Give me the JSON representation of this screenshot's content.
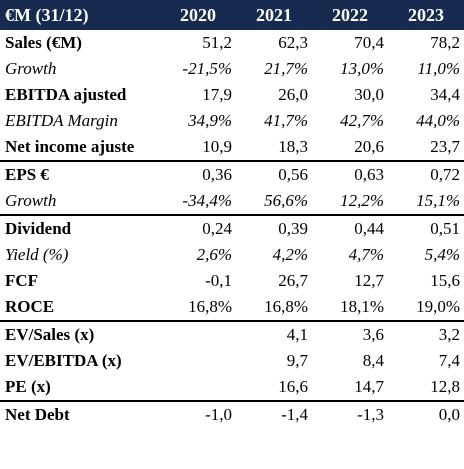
{
  "header": {
    "label": "€M (31/12)",
    "years": [
      "2020",
      "2021",
      "2022",
      "2023"
    ]
  },
  "rows": [
    {
      "label": "Sales (€M)",
      "values": [
        "51,2",
        "62,3",
        "70,4",
        "78,2"
      ],
      "style": "bold"
    },
    {
      "label": "Growth",
      "values": [
        "-21,5%",
        "21,7%",
        "13,0%",
        "11,0%"
      ],
      "style": "italic"
    },
    {
      "label": "EBITDA ajusted",
      "values": [
        "17,9",
        "26,0",
        "30,0",
        "34,4"
      ],
      "style": "bold"
    },
    {
      "label": "EBITDA Margin",
      "values": [
        "34,9%",
        "41,7%",
        "42,7%",
        "44,0%"
      ],
      "style": "italic"
    },
    {
      "label": "Net income ajuste",
      "values": [
        "10,9",
        "18,3",
        "20,6",
        "23,7"
      ],
      "style": "bold"
    },
    {
      "label": "EPS  €",
      "values": [
        "0,36",
        "0,56",
        "0,63",
        "0,72"
      ],
      "style": "bold"
    },
    {
      "label": "Growth",
      "values": [
        "-34,4%",
        "56,6%",
        "12,2%",
        "15,1%"
      ],
      "style": "italic"
    },
    {
      "label": "Dividend",
      "values": [
        "0,24",
        "0,39",
        "0,44",
        "0,51"
      ],
      "style": "bold"
    },
    {
      "label": "Yield (%)",
      "values": [
        "2,6%",
        "4,2%",
        "4,7%",
        "5,4%"
      ],
      "style": "italic"
    },
    {
      "label": "FCF",
      "values": [
        "-0,1",
        "26,7",
        "12,7",
        "15,6"
      ],
      "style": "bold"
    },
    {
      "label": "ROCE",
      "values": [
        "16,8%",
        "16,8%",
        "18,1%",
        "19,0%"
      ],
      "style": "bold"
    },
    {
      "label": "EV/Sales (x)",
      "values": [
        "",
        "4,1",
        "3,6",
        "3,2"
      ],
      "style": "bold"
    },
    {
      "label": "EV/EBITDA (x)",
      "values": [
        "",
        "9,7",
        "8,4",
        "7,4"
      ],
      "style": "bold"
    },
    {
      "label": "PE (x)",
      "values": [
        "",
        "16,6",
        "14,7",
        "12,8"
      ],
      "style": "bold"
    },
    {
      "label": "Net Debt",
      "values": [
        "-1,0",
        "-1,4",
        "-1,3",
        "0,0"
      ],
      "style": "bold"
    }
  ],
  "colors": {
    "header_bg": "#172a4f",
    "header_text": "#ffffff",
    "divider": "#000000"
  }
}
